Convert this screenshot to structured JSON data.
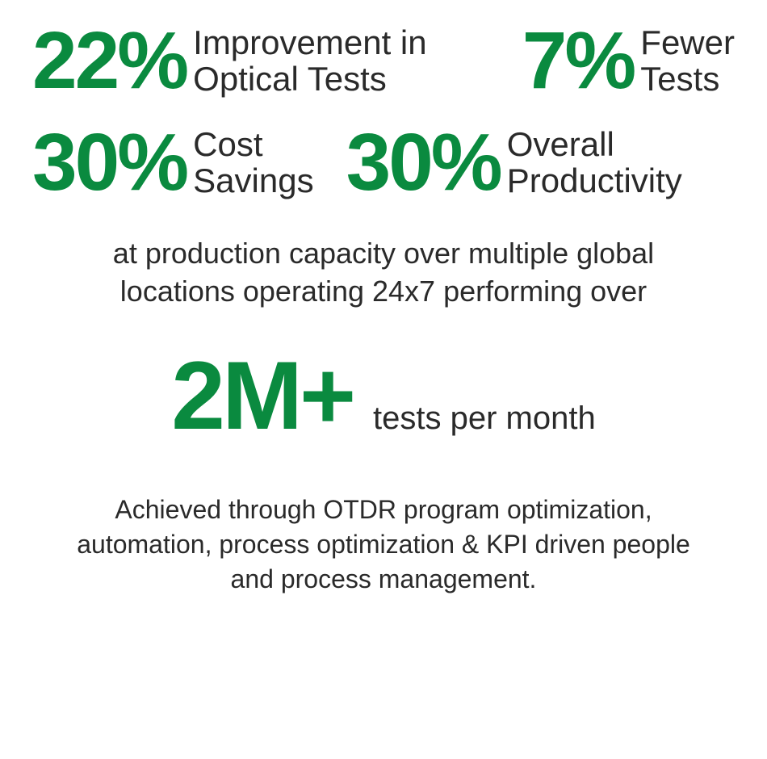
{
  "colors": {
    "accent": "#0a8a3f",
    "text": "#2a2a2a",
    "background": "#ffffff"
  },
  "typography": {
    "stat_number_fontsize": 100,
    "stat_number_weight": 700,
    "stat_label_fontsize": 42,
    "stat_label_weight": 300,
    "midtext_fontsize": 36,
    "volume_number_fontsize": 120,
    "volume_label_fontsize": 40,
    "footer_fontsize": 32
  },
  "stats": [
    {
      "value": "22%",
      "label_line1": "Improvement in",
      "label_line2": "Optical Tests"
    },
    {
      "value": "7%",
      "label_line1": "Fewer",
      "label_line2": "Tests"
    },
    {
      "value": "30%",
      "label_line1": "Cost",
      "label_line2": "Savings"
    },
    {
      "value": "30%",
      "label_line1": "Overall",
      "label_line2": "Productivity"
    }
  ],
  "mid_paragraph": "at production capacity over multiple global locations operating 24x7 performing over",
  "volume": {
    "value": "2M+",
    "label": "tests per month"
  },
  "footer_paragraph": "Achieved through OTDR program optimization, automation, process optimization & KPI driven people and process management."
}
